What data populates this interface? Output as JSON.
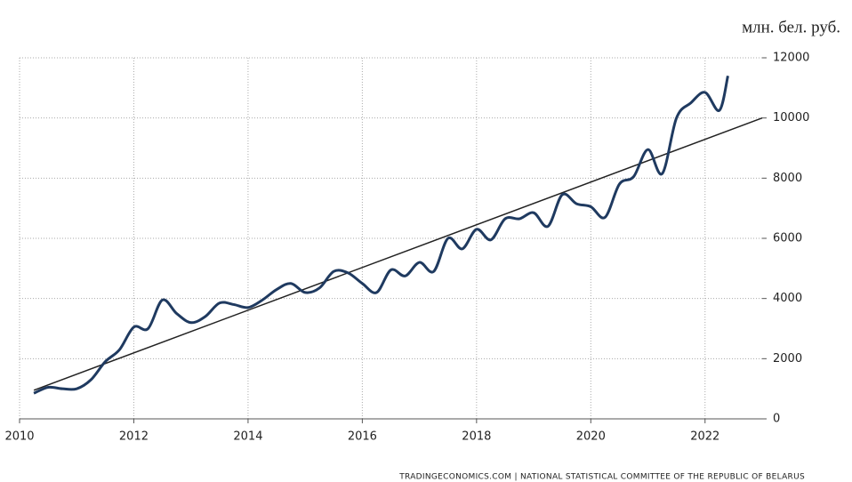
{
  "chart_data": {
    "type": "line",
    "unit_label": "млн. бел. руб.",
    "source": "TRADINGECONOMICS.COM  |  NATIONAL STATISTICAL COMMITTEE OF THE REPUBLIC OF BELARUS",
    "xlim": [
      2010,
      2023
    ],
    "xticks": [
      2010,
      2012,
      2014,
      2016,
      2018,
      2020,
      2022
    ],
    "ylim": [
      0,
      12000
    ],
    "yticks": [
      0,
      2000,
      4000,
      6000,
      8000,
      10000,
      12000
    ],
    "grid": true,
    "series": [
      {
        "color": "#1f3a60",
        "x": [
          2010.25,
          2010.5,
          2010.75,
          2011.0,
          2011.25,
          2011.5,
          2011.75,
          2012.0,
          2012.25,
          2012.5,
          2012.75,
          2013.0,
          2013.25,
          2013.5,
          2013.75,
          2014.0,
          2014.25,
          2014.5,
          2014.75,
          2015.0,
          2015.25,
          2015.5,
          2015.75,
          2016.0,
          2016.25,
          2016.5,
          2016.75,
          2017.0,
          2017.25,
          2017.5,
          2017.75,
          2018.0,
          2018.25,
          2018.5,
          2018.75,
          2019.0,
          2019.25,
          2019.5,
          2019.75,
          2020.0,
          2020.25,
          2020.5,
          2020.75,
          2021.0,
          2021.25,
          2021.5,
          2021.75,
          2022.0,
          2022.25,
          2022.4
        ],
        "values": [
          850,
          1050,
          1000,
          1000,
          1300,
          1900,
          2300,
          3050,
          3000,
          3950,
          3500,
          3200,
          3400,
          3850,
          3800,
          3700,
          3950,
          4300,
          4500,
          4200,
          4350,
          4900,
          4850,
          4500,
          4200,
          4950,
          4750,
          5200,
          4900,
          6000,
          5650,
          6300,
          5950,
          6650,
          6650,
          6850,
          6400,
          7450,
          7150,
          7050,
          6700,
          7800,
          8050,
          8950,
          8150,
          10000,
          10500,
          10850,
          10250,
          11400
        ]
      }
    ],
    "trend": {
      "color": "#222222",
      "x": [
        2010.25,
        2023.0
      ],
      "values": [
        950,
        10000
      ]
    }
  }
}
